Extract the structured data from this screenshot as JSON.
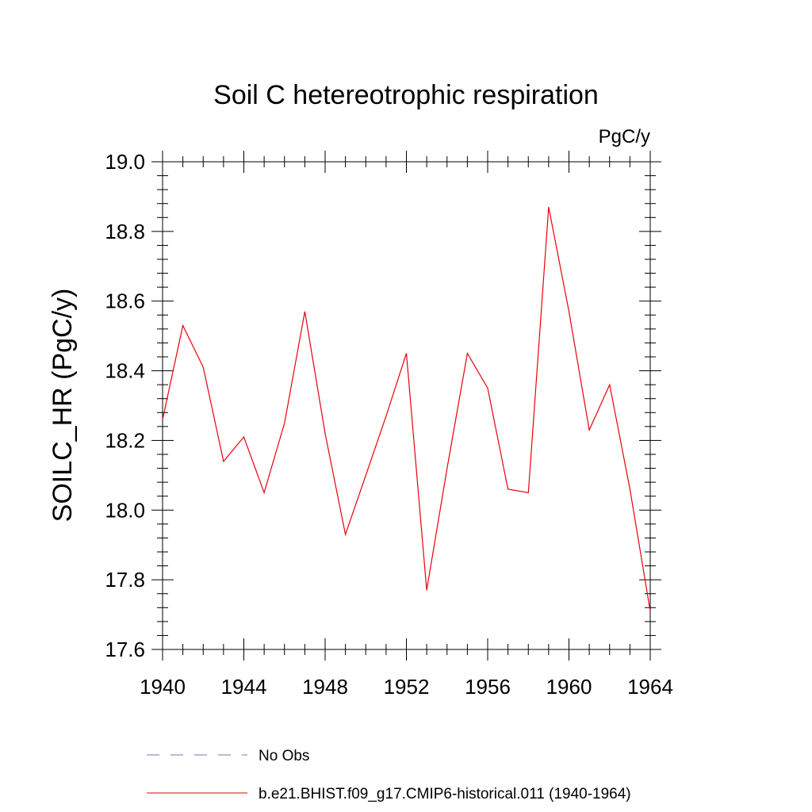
{
  "chart_data": {
    "type": "line",
    "title": "Soil C hetereotrophic respiration",
    "units": "PgC/y",
    "ylabel": "SOILC_HR  (PgC/y)",
    "xlabel": "",
    "xlim": [
      1940,
      1964
    ],
    "ylim": [
      17.6,
      19.0
    ],
    "xticks": [
      1940,
      1944,
      1948,
      1952,
      1956,
      1960,
      1964
    ],
    "xtick_labels": [
      "1940",
      "1944",
      "1948",
      "1952",
      "1956",
      "1960",
      "1964"
    ],
    "yticks": [
      17.6,
      17.8,
      18.0,
      18.2,
      18.4,
      18.6,
      18.8,
      19.0
    ],
    "ytick_labels": [
      "17.6",
      "17.8",
      "18.0",
      "18.2",
      "18.4",
      "18.6",
      "18.8",
      "19.0"
    ],
    "grid": false,
    "legend_position": "bottom",
    "series": [
      {
        "name": "b.e21.BHIST.f09_g17.CMIP6-historical.011 (1940-1964)",
        "color": "#e8000b",
        "line_style": "solid",
        "x": [
          1940,
          1941,
          1942,
          1943,
          1944,
          1945,
          1946,
          1947,
          1948,
          1949,
          1950,
          1951,
          1952,
          1953,
          1954,
          1955,
          1956,
          1957,
          1958,
          1959,
          1960,
          1961,
          1962,
          1963,
          1964
        ],
        "y": [
          18.26,
          18.53,
          18.41,
          18.14,
          18.21,
          18.05,
          18.25,
          18.57,
          18.22,
          17.93,
          18.1,
          18.27,
          18.45,
          17.77,
          18.12,
          18.45,
          18.35,
          18.06,
          18.05,
          18.87,
          18.57,
          18.23,
          18.36,
          18.06,
          17.71
        ]
      }
    ],
    "legend": [
      {
        "label": "No Obs",
        "color": "#7070c8",
        "line_style": "dashed"
      },
      {
        "label": "b.e21.BHIST.f09_g17.CMIP6-historical.011 (1940-1964)",
        "color": "#e8000b",
        "line_style": "solid"
      }
    ]
  }
}
